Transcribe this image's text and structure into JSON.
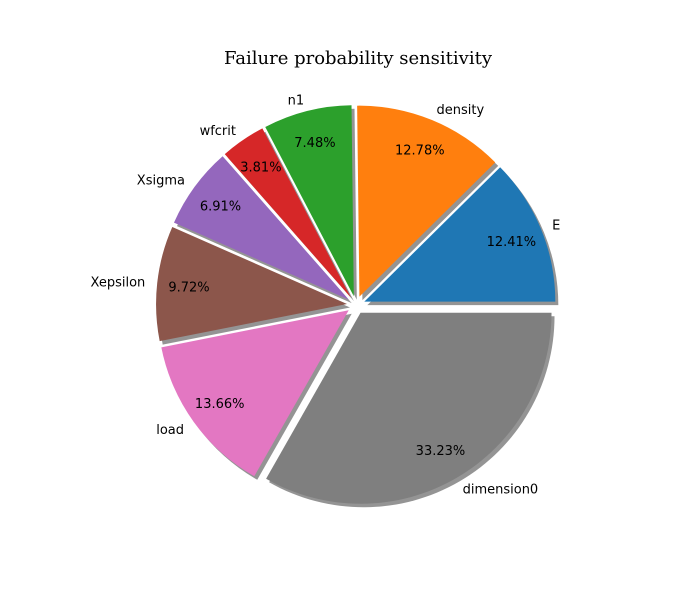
{
  "chart_data": {
    "type": "pie",
    "title": "Failure probability sensitivity",
    "start_angle_deg": 0,
    "direction": "counterclockwise",
    "shadow": true,
    "exploded": true,
    "slices": [
      {
        "label": "E",
        "value": 12.41,
        "pct_text": "12.41%",
        "color": "#1f77b4"
      },
      {
        "label": "density",
        "value": 12.78,
        "pct_text": "12.78%",
        "color": "#ff7f0e"
      },
      {
        "label": "n1",
        "value": 7.48,
        "pct_text": "7.48%",
        "color": "#2ca02c"
      },
      {
        "label": "wfcrit",
        "value": 3.81,
        "pct_text": "3.81%",
        "color": "#d62728"
      },
      {
        "label": "Xsigma",
        "value": 6.91,
        "pct_text": "6.91%",
        "color": "#9467bd"
      },
      {
        "label": "Xepsilon",
        "value": 9.72,
        "pct_text": "9.72%",
        "color": "#8c564b"
      },
      {
        "label": "load",
        "value": 13.66,
        "pct_text": "13.66%",
        "color": "#e377c2"
      },
      {
        "label": "dimension0",
        "value": 33.23,
        "pct_text": "33.23%",
        "color": "#7f7f7f"
      }
    ]
  }
}
